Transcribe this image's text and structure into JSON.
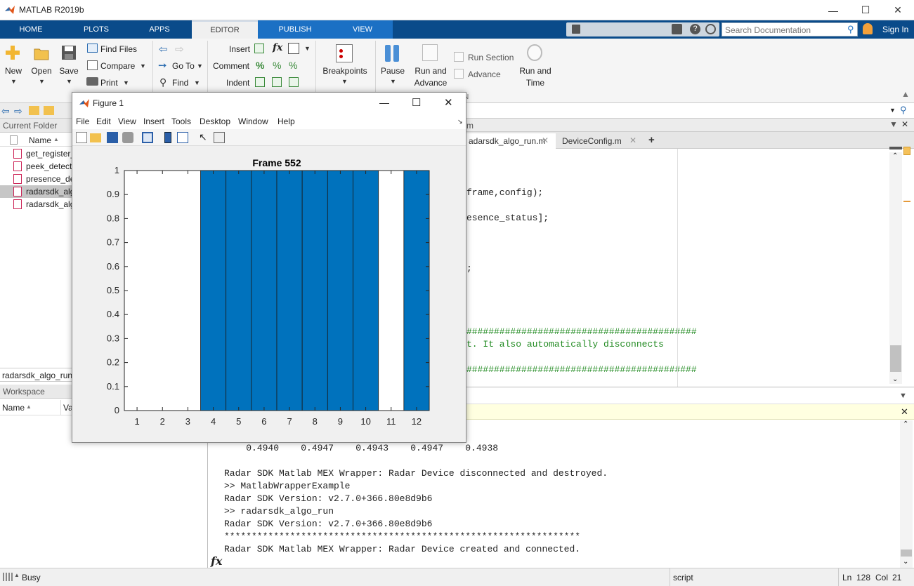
{
  "window": {
    "title": "MATLAB R2019b"
  },
  "tabs": [
    "HOME",
    "PLOTS",
    "APPS",
    "EDITOR",
    "PUBLISH",
    "VIEW"
  ],
  "active_tab": "EDITOR",
  "search": {
    "placeholder": "Search Documentation"
  },
  "signin": "Sign In",
  "ribbon": {
    "new": "New",
    "open": "Open",
    "save": "Save",
    "find_files": "Find Files",
    "compare": "Compare",
    "print": "Print",
    "go_to": "Go To",
    "find": "Find",
    "insert": "Insert",
    "comment": "Comment",
    "indent": "Indent",
    "breakpoints": "Breakpoints",
    "pause": "Pause",
    "run_and_advance_1": "Run and",
    "run_and_advance_2": "Advance",
    "run_section": "Run Section",
    "advance": "Advance",
    "run_and_time_1": "Run and",
    "run_and_time_2": "Time"
  },
  "left_panel": {
    "current_folder": "Current Folder",
    "name_col": "Name",
    "files": [
      "get_register_",
      "peek_detecti",
      "presence_de",
      "radarsdk_alg",
      "radarsdk_alg"
    ],
    "selected_index": 3,
    "details_file": "radarsdk_algo_run.",
    "workspace": "Workspace",
    "ws_name_col": "Name",
    "ws_value_col": "Va"
  },
  "editor": {
    "path_fragment": "m",
    "tabs": [
      "adarsdk_algo_run.m",
      "DeviceConfig.m"
    ],
    "lines": [
      {
        "text": "frame,config);",
        "style": "code"
      },
      {
        "text": "esence_status];",
        "style": "code"
      },
      {
        "text": ";",
        "style": "code"
      },
      {
        "text": "##########################################",
        "style": "green"
      },
      {
        "text": "t. It also automatically disconnects",
        "style": "green"
      },
      {
        "text": "##########################################",
        "style": "green"
      }
    ]
  },
  "command_window": {
    "lines": [
      "    0.4940    0.4947    0.4943    0.4947    0.4938",
      "",
      "Radar SDK Matlab MEX Wrapper: Radar Device disconnected and destroyed.",
      ">> MatlabWrapperExample",
      "Radar SDK Version: v2.7.0+366.80e8d9b6",
      ">> radarsdk_algo_run",
      "Radar SDK Version: v2.7.0+366.80e8d9b6",
      "*****************************************************************",
      "Radar SDK Matlab MEX Wrapper: Radar Device created and connected."
    ],
    "prompt": "fx"
  },
  "status": {
    "busy": "Busy",
    "mode": "script",
    "ln_label": "Ln",
    "ln": "128",
    "col_label": "Col",
    "col": "21"
  },
  "figure": {
    "title": "Figure 1",
    "menu": [
      "File",
      "Edit",
      "View",
      "Insert",
      "Tools",
      "Desktop",
      "Window",
      "Help"
    ]
  },
  "chart_data": {
    "type": "bar",
    "title": "Frame 552",
    "categories": [
      "1",
      "2",
      "3",
      "4",
      "5",
      "6",
      "7",
      "8",
      "9",
      "10",
      "11",
      "12"
    ],
    "values": [
      0,
      0,
      0,
      1,
      1,
      1,
      1,
      1,
      1,
      1,
      0,
      1
    ],
    "ylim": [
      0,
      1
    ],
    "yticks": [
      "0",
      "0.1",
      "0.2",
      "0.3",
      "0.4",
      "0.5",
      "0.6",
      "0.7",
      "0.8",
      "0.9",
      "1"
    ],
    "bar_color": "#0072bd"
  }
}
